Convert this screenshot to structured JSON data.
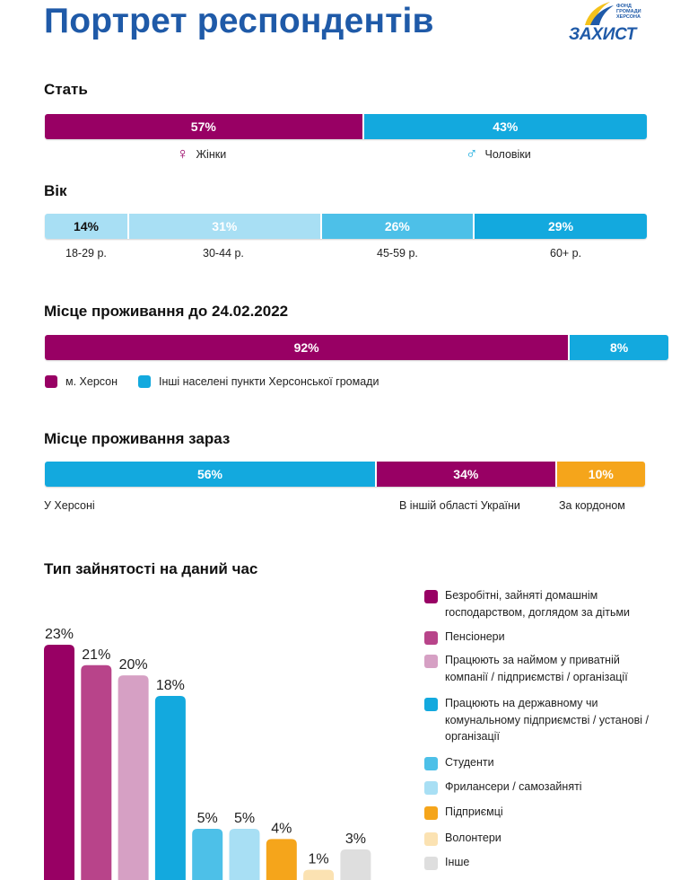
{
  "page_title": "Портрет респондентів",
  "logo": {
    "small_text": "ФОНД ГРОМАДИ ХЕРСОНА",
    "main_text": "ЗАХИСТ"
  },
  "colors": {
    "plum": "#980064",
    "magenta": "#b8448a",
    "pink": "#d6a0c4",
    "blue": "#13a9de",
    "sky": "#4dc0e8",
    "pale": "#a8dff4",
    "orange": "#f5a51b",
    "cream": "#fbe2b2",
    "grey": "#dedede"
  },
  "gender": {
    "title": "Стать",
    "segments": [
      {
        "value": "57%",
        "share": 57,
        "label": "Жінки",
        "icon": "female-icon"
      },
      {
        "value": "43%",
        "share": 43,
        "label": "Чоловіки",
        "icon": "male-icon"
      }
    ]
  },
  "age": {
    "title": "Вік",
    "segments": [
      {
        "value": "14%",
        "share": 14,
        "label": "18-29 р."
      },
      {
        "value": "31%",
        "share": 31,
        "label": "30-44 р."
      },
      {
        "value": "26%",
        "share": 26,
        "label": "45-59 р."
      },
      {
        "value": "29%",
        "share": 29,
        "label": "60+ р."
      }
    ]
  },
  "residence_before": {
    "title": "Місце проживання до 24.02.2022",
    "segments": [
      {
        "value": "92%",
        "share": 92,
        "label": "м. Херсон"
      },
      {
        "value": "8%",
        "share": 8,
        "label": "Інші населені пункти Херсонської громади"
      }
    ]
  },
  "residence_now": {
    "title": "Місце проживання зараз",
    "segments": [
      {
        "value": "56%",
        "share": 56,
        "label": "У Херсоні"
      },
      {
        "value": "34%",
        "share": 34,
        "label": "В іншій області України"
      },
      {
        "value": "10%",
        "share": 10,
        "label": "За кордоном"
      }
    ]
  },
  "employment": {
    "title": "Тип зайнятості на даний час"
  },
  "chart_data": {
    "type": "bar",
    "categories": [
      "Безробітні, зайняті домашнім господарством, доглядом за дітьми",
      "Пенсіонери",
      "Працюють за наймом у приватній компанії / підприємстві / організації",
      "Працюють на державному чи комунальному підприємстві / установі / організації",
      "Студенти",
      "Фрилансери / самозайняті",
      "Підприємці",
      "Волонтери",
      "Інше"
    ],
    "values": [
      23,
      21,
      20,
      18,
      5,
      5,
      4,
      1,
      3
    ],
    "data_labels": [
      "23%",
      "21%",
      "20%",
      "18%",
      "5%",
      "5%",
      "4%",
      "1%",
      "3%"
    ],
    "colors": [
      "#980064",
      "#b8448a",
      "#d6a0c4",
      "#13a9de",
      "#4dc0e8",
      "#a8dff4",
      "#f5a51b",
      "#fbe2b2",
      "#dedede"
    ],
    "legend_lines": [
      [
        "Безробітні, зайняті домашнім",
        "господарством, доглядом за дітьми"
      ],
      [
        "Пенсіонери"
      ],
      [
        "Працюють за наймом у приватній",
        "компанії / підприємстві / організації"
      ],
      [
        "Працюють на державному чи",
        "комунальному підприємстві / установі /",
        "організації"
      ],
      [
        "Студенти"
      ],
      [
        "Фрилансери / самозайняті"
      ],
      [
        "Підприємці"
      ],
      [
        "Волонтери"
      ],
      [
        "Інше"
      ]
    ],
    "ylim": [
      0,
      23
    ],
    "legend_position": "right",
    "grid": false
  }
}
